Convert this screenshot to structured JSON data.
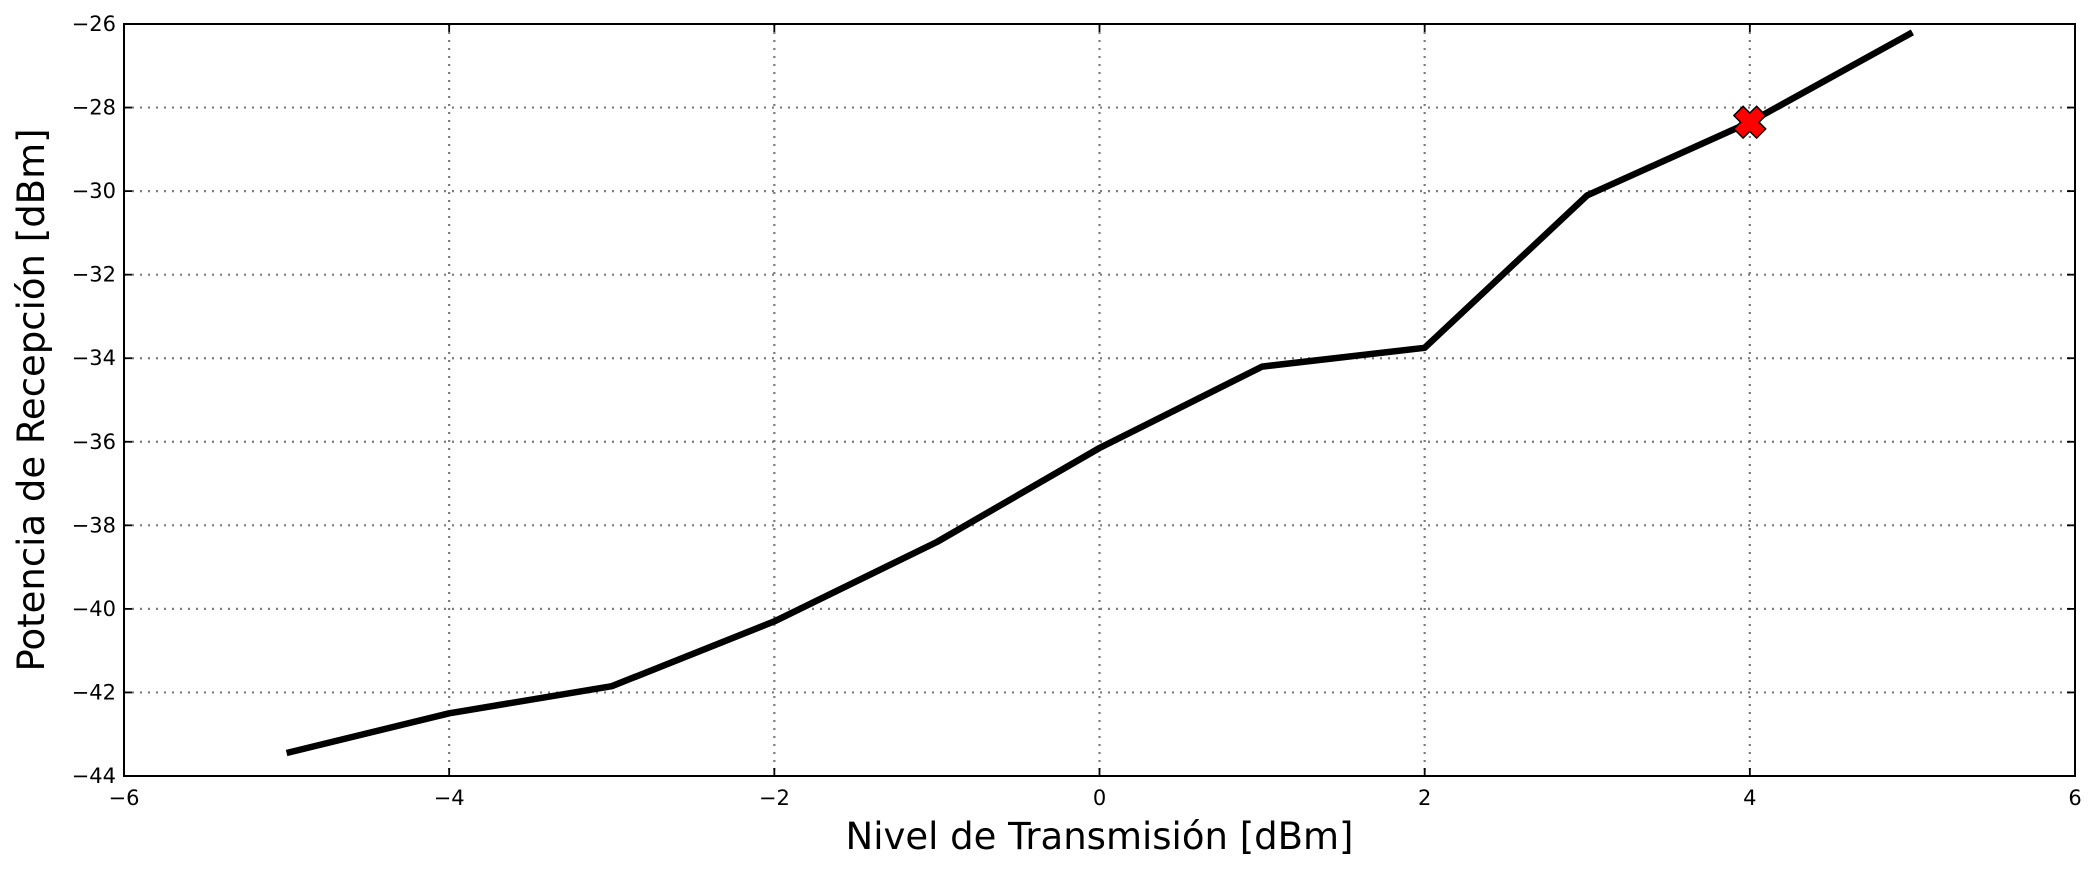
{
  "chart_data": {
    "type": "line",
    "title": "",
    "xlabel": "Nivel de Transmisión [dBm]",
    "ylabel": "Potencia de Recepción [dBm]",
    "xlim": [
      -6,
      6
    ],
    "ylim": [
      -44,
      -26
    ],
    "x_ticks": [
      -6,
      -4,
      -2,
      0,
      2,
      4,
      6
    ],
    "y_ticks": [
      -44,
      -42,
      -40,
      -38,
      -36,
      -34,
      -32,
      -30,
      -28,
      -26
    ],
    "x_tick_labels": [
      "−6",
      "−4",
      "−2",
      "0",
      "2",
      "4",
      "6"
    ],
    "y_tick_labels": [
      "−44",
      "−42",
      "−40",
      "−38",
      "−36",
      "−34",
      "−32",
      "−30",
      "−28",
      "−26"
    ],
    "grid": true,
    "series": [
      {
        "x": [
          -5,
          -4,
          -3,
          -2,
          -1,
          0,
          1,
          2,
          3,
          4,
          5
        ],
        "y": [
          -43.45,
          -42.5,
          -41.85,
          -40.3,
          -38.4,
          -36.15,
          -34.2,
          -33.75,
          -30.1,
          -28.35,
          -26.2
        ],
        "color": "#000000"
      }
    ],
    "marker": {
      "x": 4,
      "y": -28.35,
      "shape": "x",
      "color": "#ff0000"
    }
  }
}
